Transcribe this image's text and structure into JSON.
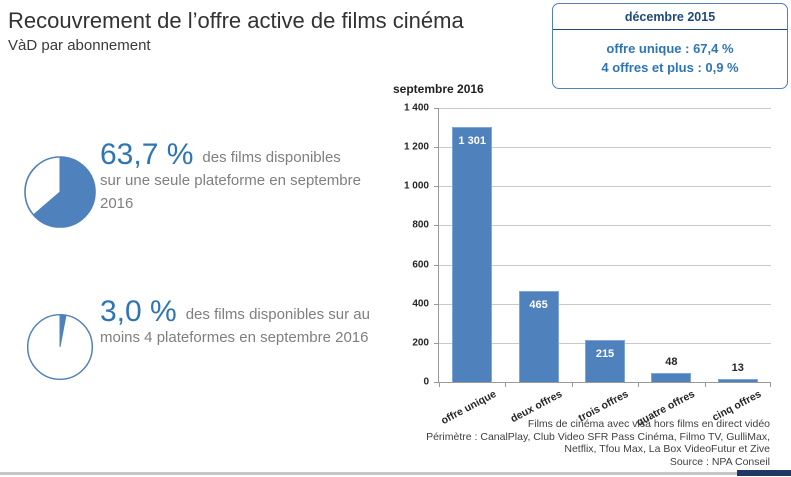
{
  "header": {
    "title": "Recouvrement de l’offre active de films cinéma",
    "subtitle": "VàD par abonnement"
  },
  "callout_box": {
    "title": "décembre 2015",
    "lines": [
      "offre unique : 67,4 %",
      "4 offres et plus : 0,9 %"
    ]
  },
  "stats": [
    {
      "value": "63,7 %",
      "pct": 63.7,
      "text": "des films disponibles sur une seule plateforme en septembre 2016"
    },
    {
      "value": "3,0 %",
      "pct": 3.0,
      "text": "des films disponibles sur au moins 4 plateformes en septembre 2016"
    }
  ],
  "chart_data": {
    "type": "bar",
    "title": "septembre 2016",
    "categories": [
      "offre unique",
      "deux offres",
      "trois offres",
      "quatre offres",
      "cinq offres"
    ],
    "values": [
      1301,
      465,
      215,
      48,
      13
    ],
    "value_labels": [
      "1 301",
      "465",
      "215",
      "48",
      "13"
    ],
    "xlabel": "",
    "ylabel": "",
    "ylim": [
      0,
      1400
    ],
    "grid": true,
    "legend": "none",
    "yticks": [
      {
        "label": "1 400",
        "value": 1400
      },
      {
        "label": "1 200",
        "value": 1200
      },
      {
        "label": "1 000",
        "value": 1000
      },
      {
        "label": "800",
        "value": 800
      },
      {
        "label": "600",
        "value": 600
      },
      {
        "label": "400",
        "value": 400
      },
      {
        "label": "200",
        "value": 200
      },
      {
        "label": "0",
        "value": 0
      }
    ]
  },
  "footer": {
    "lines": [
      "Films de cinéma  avec visa hors films en direct vidéo",
      "Périmètre : CanalPlay, Club Video SFR Pass Cinéma, Filmo TV, GulliMax,",
      "Netflix, Tfou Max, La Box VideoFutur et Zive",
      "Source : NPA Conseil"
    ]
  },
  "colors": {
    "accent_blue": "#4F81BD",
    "number_blue": "#2E75B6",
    "box_title_blue": "#1F497D",
    "navy_accent": "#1F3864",
    "gray_text": "#7F7F7F"
  }
}
